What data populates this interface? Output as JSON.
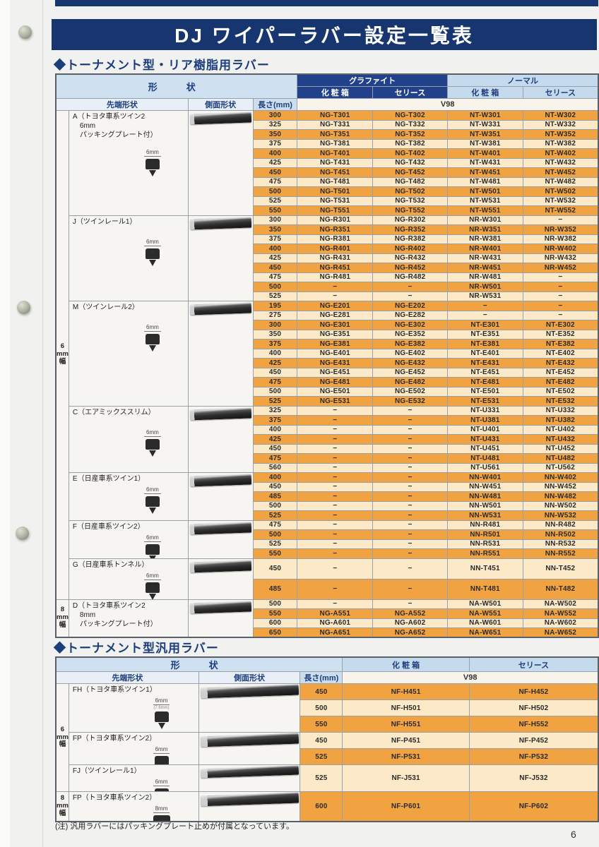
{
  "page": {
    "title": "DJ ワイパーラバー設定一覧表",
    "note": "(注) 汎用ラバーにはパッキングプレート止めが付属となっています。",
    "page_number": "6"
  },
  "colors": {
    "navy": "#17366f",
    "navy_header": "#21418b",
    "light_blue_header": "#c6daee",
    "row_orange": "#f1a342",
    "row_cream": "#fbe9c8"
  },
  "table1": {
    "section_title": "◆トーナメント型・リア樹脂用ラバー",
    "headers": {
      "shape": "形　状",
      "graphite": "グラファイト",
      "normal": "ノーマル",
      "box": "化 粧 箱",
      "sleeve": "セリース",
      "tip": "先端形状",
      "side": "側面形状",
      "length": "長さ(mm)",
      "v98": "V98"
    },
    "width_groups": [
      {
        "label": "6mm幅",
        "groups": [
          "A",
          "J",
          "M",
          "C",
          "E",
          "F",
          "G"
        ]
      },
      {
        "label": "8mm幅",
        "groups": [
          "D"
        ]
      }
    ],
    "groups": [
      {
        "id": "A",
        "label_lines": [
          "A（トヨタ車系ツイン2",
          "　6mm",
          "　パッキングプレート付）"
        ],
        "icon": "6mm",
        "rows": [
          [
            "300",
            "NG-T301",
            "NG-T302",
            "NT-W301",
            "NT-W302"
          ],
          [
            "325",
            "NG-T331",
            "NG-T332",
            "NT-W331",
            "NT-W332"
          ],
          [
            "350",
            "NG-T351",
            "NG-T352",
            "NT-W351",
            "NT-W352"
          ],
          [
            "375",
            "NG-T381",
            "NG-T382",
            "NT-W381",
            "NT-W382"
          ],
          [
            "400",
            "NG-T401",
            "NG-T402",
            "NT-W401",
            "NT-W402"
          ],
          [
            "425",
            "NG-T431",
            "NG-T432",
            "NT-W431",
            "NT-W432"
          ],
          [
            "450",
            "NG-T451",
            "NG-T452",
            "NT-W451",
            "NT-W452"
          ],
          [
            "475",
            "NG-T481",
            "NG-T482",
            "NT-W481",
            "NT-W482"
          ],
          [
            "500",
            "NG-T501",
            "NG-T502",
            "NT-W501",
            "NT-W502"
          ],
          [
            "525",
            "NG-T531",
            "NG-T532",
            "NT-W531",
            "NT-W532"
          ],
          [
            "550",
            "NG-T551",
            "NG-T552",
            "NT-W551",
            "NT-W552"
          ]
        ]
      },
      {
        "id": "J",
        "label_lines": [
          "J（ツインレール1）"
        ],
        "icon": "6mm",
        "rows": [
          [
            "300",
            "NG-R301",
            "NG-R302",
            "NR-W301",
            "−"
          ],
          [
            "350",
            "NG-R351",
            "NG-R352",
            "NR-W351",
            "NR-W352"
          ],
          [
            "375",
            "NG-R381",
            "NG-R382",
            "NR-W381",
            "NR-W382"
          ],
          [
            "400",
            "NG-R401",
            "NG-R402",
            "NR-W401",
            "NR-W402"
          ],
          [
            "425",
            "NG-R431",
            "NG-R432",
            "NR-W431",
            "NR-W432"
          ],
          [
            "450",
            "NG-R451",
            "NG-R452",
            "NR-W451",
            "NR-W452"
          ],
          [
            "475",
            "NG-R481",
            "NG-R482",
            "NR-W481",
            "−"
          ],
          [
            "500",
            "−",
            "−",
            "NR-W501",
            "−"
          ],
          [
            "525",
            "−",
            "−",
            "NR-W531",
            "−"
          ]
        ]
      },
      {
        "id": "M",
        "label_lines": [
          "M（ツインレール2）"
        ],
        "icon": "6mm",
        "rows": [
          [
            "195",
            "NG-E201",
            "NG-E202",
            "−",
            "−"
          ],
          [
            "275",
            "NG-E281",
            "NG-E282",
            "−",
            "−"
          ],
          [
            "300",
            "NG-E301",
            "NG-E302",
            "NT-E301",
            "NT-E302"
          ],
          [
            "350",
            "NG-E351",
            "NG-E352",
            "NT-E351",
            "NT-E352"
          ],
          [
            "375",
            "NG-E381",
            "NG-E382",
            "NT-E381",
            "NT-E382"
          ],
          [
            "400",
            "NG-E401",
            "NG-E402",
            "NT-E401",
            "NT-E402"
          ],
          [
            "425",
            "NG-E431",
            "NG-E432",
            "NT-E431",
            "NT-E432"
          ],
          [
            "450",
            "NG-E451",
            "NG-E452",
            "NT-E451",
            "NT-E452"
          ],
          [
            "475",
            "NG-E481",
            "NG-E482",
            "NT-E481",
            "NT-E482"
          ],
          [
            "500",
            "NG-E501",
            "NG-E502",
            "NT-E501",
            "NT-E502"
          ],
          [
            "525",
            "NG-E531",
            "NG-E532",
            "NT-E531",
            "NT-E532"
          ]
        ]
      },
      {
        "id": "C",
        "label_lines": [
          "C（エアミックススリム）"
        ],
        "icon": "6mm",
        "rows": [
          [
            "325",
            "−",
            "−",
            "NT-U331",
            "NT-U332"
          ],
          [
            "375",
            "−",
            "−",
            "NT-U381",
            "NT-U382"
          ],
          [
            "400",
            "−",
            "−",
            "NT-U401",
            "NT-U402"
          ],
          [
            "425",
            "−",
            "−",
            "NT-U431",
            "NT-U432"
          ],
          [
            "450",
            "−",
            "−",
            "NT-U451",
            "NT-U452"
          ],
          [
            "475",
            "−",
            "−",
            "NT-U481",
            "NT-U482"
          ],
          [
            "560",
            "−",
            "−",
            "NT-U561",
            "NT-U562"
          ]
        ]
      },
      {
        "id": "E",
        "label_lines": [
          "E（日産車系ツイン1）"
        ],
        "icon": "6mm",
        "rows": [
          [
            "400",
            "−",
            "−",
            "NN-W401",
            "NN-W402"
          ],
          [
            "450",
            "−",
            "−",
            "NN-W451",
            "NN-W452"
          ],
          [
            "485",
            "−",
            "−",
            "NN-W481",
            "NN-W482"
          ],
          [
            "500",
            "−",
            "−",
            "NN-W501",
            "NN-W502"
          ],
          [
            "525",
            "−",
            "−",
            "NN-W531",
            "NN-W532"
          ]
        ]
      },
      {
        "id": "F",
        "label_lines": [
          "F（日産車系ツイン2）"
        ],
        "icon": "6mm",
        "rows": [
          [
            "475",
            "−",
            "−",
            "NN-R481",
            "NN-R482"
          ],
          [
            "500",
            "−",
            "−",
            "NN-R501",
            "NN-R502"
          ],
          [
            "525",
            "−",
            "−",
            "NN-R531",
            "NN-R532"
          ],
          [
            "550",
            "−",
            "−",
            "NN-R551",
            "NN-R552"
          ]
        ]
      },
      {
        "id": "G",
        "label_lines": [
          "G（日産車系トンネル）"
        ],
        "icon": "6mm",
        "rows": [
          [
            "450",
            "−",
            "−",
            "NN-T451",
            "NN-T452"
          ],
          [
            "485",
            "−",
            "−",
            "NN-T481",
            "NN-T482"
          ]
        ]
      },
      {
        "id": "D",
        "label_lines": [
          "D（トヨタ車系ツイン2",
          "　8mm",
          "　パッキングプレート付）"
        ],
        "icon": "8mm",
        "rows": [
          [
            "500",
            "−",
            "−",
            "NA-W501",
            "NA-W502"
          ],
          [
            "550",
            "NG-A551",
            "NG-A552",
            "NA-W551",
            "NA-W552"
          ],
          [
            "600",
            "NG-A601",
            "NG-A602",
            "NA-W601",
            "NA-W602"
          ],
          [
            "650",
            "NG-A651",
            "NG-A652",
            "NA-W651",
            "NA-W652"
          ]
        ]
      }
    ]
  },
  "table2": {
    "section_title": "◆トーナメント型汎用ラバー",
    "headers": {
      "shape": "形　状",
      "box": "化 粧 箱",
      "sleeve": "セリース",
      "tip": "先端形状",
      "side": "側面形状",
      "length": "長さ(mm)",
      "v98": "V98"
    },
    "width_groups": [
      {
        "label": "6mm幅",
        "groups": [
          "FH",
          "FP6",
          "FJ"
        ]
      },
      {
        "label": "8mm幅",
        "groups": [
          "FP8"
        ]
      }
    ],
    "groups": [
      {
        "id": "FH",
        "label_lines": [
          "FH（トヨタ車系ツイン1）"
        ],
        "icon": "6mm",
        "icon_sub": "(7.6mm)",
        "rows": [
          [
            "450",
            "NF-H451",
            "NF-H452"
          ],
          [
            "500",
            "NF-H501",
            "NF-H502"
          ],
          [
            "550",
            "NF-H551",
            "NF-H552"
          ]
        ]
      },
      {
        "id": "FP6",
        "label_lines": [
          "FP（トヨタ車系ツイン2）"
        ],
        "icon": "6mm",
        "rows": [
          [
            "450",
            "NF-P451",
            "NF-P452"
          ],
          [
            "525",
            "NF-P531",
            "NF-P532"
          ]
        ]
      },
      {
        "id": "FJ",
        "label_lines": [
          "FJ（ツインレール1）"
        ],
        "icon": "6mm",
        "rows": [
          [
            "525",
            "NF-J531",
            "NF-J532"
          ]
        ]
      },
      {
        "id": "FP8",
        "label_lines": [
          "FP（トヨタ車系ツイン2）"
        ],
        "icon": "8mm",
        "rows": [
          [
            "600",
            "NF-P601",
            "NF-P602"
          ]
        ]
      }
    ]
  }
}
